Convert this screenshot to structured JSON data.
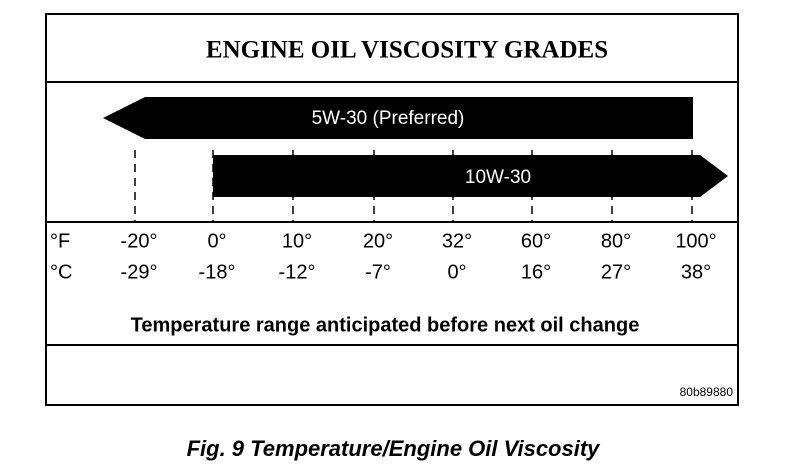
{
  "header": {
    "title": "ENGINE OIL VISCOSITY GRADES"
  },
  "grades": [
    {
      "label": "5W-30 (Preferred)"
    },
    {
      "label": "10W-30"
    }
  ],
  "scale": {
    "fahrenheit_unit": "°F",
    "celsius_unit": "°C",
    "fahrenheit": [
      "-20°",
      "0°",
      "10°",
      "20°",
      "32°",
      "60°",
      "80°",
      "100°"
    ],
    "celsius": [
      "-29°",
      "-18°",
      "-12°",
      "-7°",
      "0°",
      "16°",
      "27°",
      "38°"
    ]
  },
  "range_caption": "Temperature range anticipated before next oil change",
  "code": "80b89880",
  "figure_caption": "Fig. 9 Temperature/Engine Oil Viscosity"
}
